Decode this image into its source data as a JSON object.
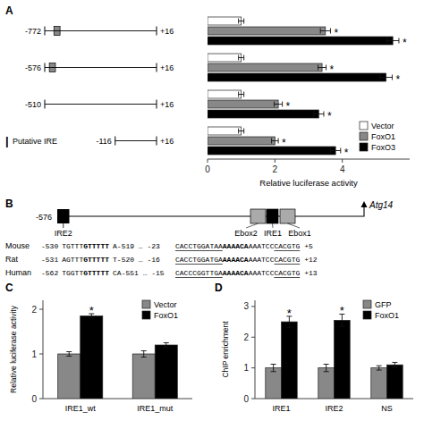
{
  "chart_data": [
    {
      "type": "bar",
      "title": "A",
      "orientation": "horizontal",
      "categories": [
        "-772",
        "-576",
        "-510",
        "Putative IRE"
      ],
      "series": [
        {
          "name": "Vector",
          "color": "#ffffff",
          "values": [
            1.0,
            1.0,
            1.0,
            1.0
          ],
          "errors": [
            0.08,
            0.08,
            0.08,
            0.08
          ]
        },
        {
          "name": "FoxO1",
          "color": "#888888",
          "values": [
            3.5,
            3.4,
            2.1,
            2.0
          ],
          "errors": [
            0.15,
            0.12,
            0.12,
            0.1
          ],
          "annotations": [
            "*",
            "*",
            "*",
            "*"
          ]
        },
        {
          "name": "FoxO3",
          "color": "#000000",
          "values": [
            5.5,
            5.3,
            3.3,
            3.8
          ],
          "errors": [
            0.18,
            0.18,
            0.15,
            0.15
          ],
          "annotations": [
            "*",
            "*",
            "*",
            "*"
          ]
        }
      ],
      "xlabel": "Relative luciferase activity",
      "xlim": [
        0,
        6
      ],
      "xticks": [
        0,
        2,
        4
      ],
      "legend": "lower right",
      "annotations": [
        "|",
        "-116",
        "+16"
      ]
    },
    {
      "type": "diagram",
      "title": "B",
      "annotations": [
        "-576",
        "IRE2",
        "Ebox2",
        "IRE1",
        "Ebox1",
        "Atg14"
      ],
      "sequences": [
        {
          "name": "Mouse",
          "parts": [
            "-530",
            "TGTTT",
            "GTTTTT",
            "A-519 … -23",
            "CACCTGGATAA",
            "AAAACA",
            "AAATCC",
            "CACGTG",
            "+5"
          ]
        },
        {
          "name": "Rat",
          "parts": [
            "-531",
            "AGTTT",
            "GTTTTT",
            "T-520 … -16",
            "CACCTGGATGA",
            "AAAACA",
            "AAATCC",
            "CACGTG",
            "+12"
          ]
        },
        {
          "name": "Human",
          "parts": [
            "-562",
            "TGGTT",
            "GTTTTT",
            "CA-551 … -15",
            "CACCCGGTTGA",
            "AAAACA",
            "AAATCC",
            "CACGTG",
            "+13"
          ]
        }
      ]
    },
    {
      "type": "bar",
      "title": "C",
      "categories": [
        "IRE1_wt",
        "IRE1_mut"
      ],
      "series": [
        {
          "name": "Vector",
          "color": "#888888",
          "values": [
            1.0,
            1.0
          ],
          "errors": [
            0.05,
            0.07
          ]
        },
        {
          "name": "FoxO1",
          "color": "#000000",
          "values": [
            1.85,
            1.2
          ],
          "errors": [
            0.05,
            0.05
          ],
          "annotations": [
            "*",
            null
          ]
        }
      ],
      "ylabel": "Relative luciferase activity",
      "ylim": [
        0,
        2.2
      ],
      "yticks": [
        0,
        1,
        2
      ],
      "legend": "upper right"
    },
    {
      "type": "bar",
      "title": "D",
      "categories": [
        "IRE1",
        "IRE2",
        "NS"
      ],
      "series": [
        {
          "name": "GFP",
          "color": "#888888",
          "values": [
            1.0,
            1.0,
            1.0
          ],
          "errors": [
            0.12,
            0.12,
            0.07
          ]
        },
        {
          "name": "FoxO1",
          "color": "#000000",
          "values": [
            2.5,
            2.55,
            1.1
          ],
          "errors": [
            0.18,
            0.2,
            0.08
          ],
          "annotations": [
            "*",
            "*",
            null
          ]
        }
      ],
      "ylabel": "ChIP enrichment",
      "ylim": [
        0,
        3.2
      ],
      "yticks": [
        0,
        1,
        2,
        3
      ],
      "legend": "upper right"
    }
  ]
}
